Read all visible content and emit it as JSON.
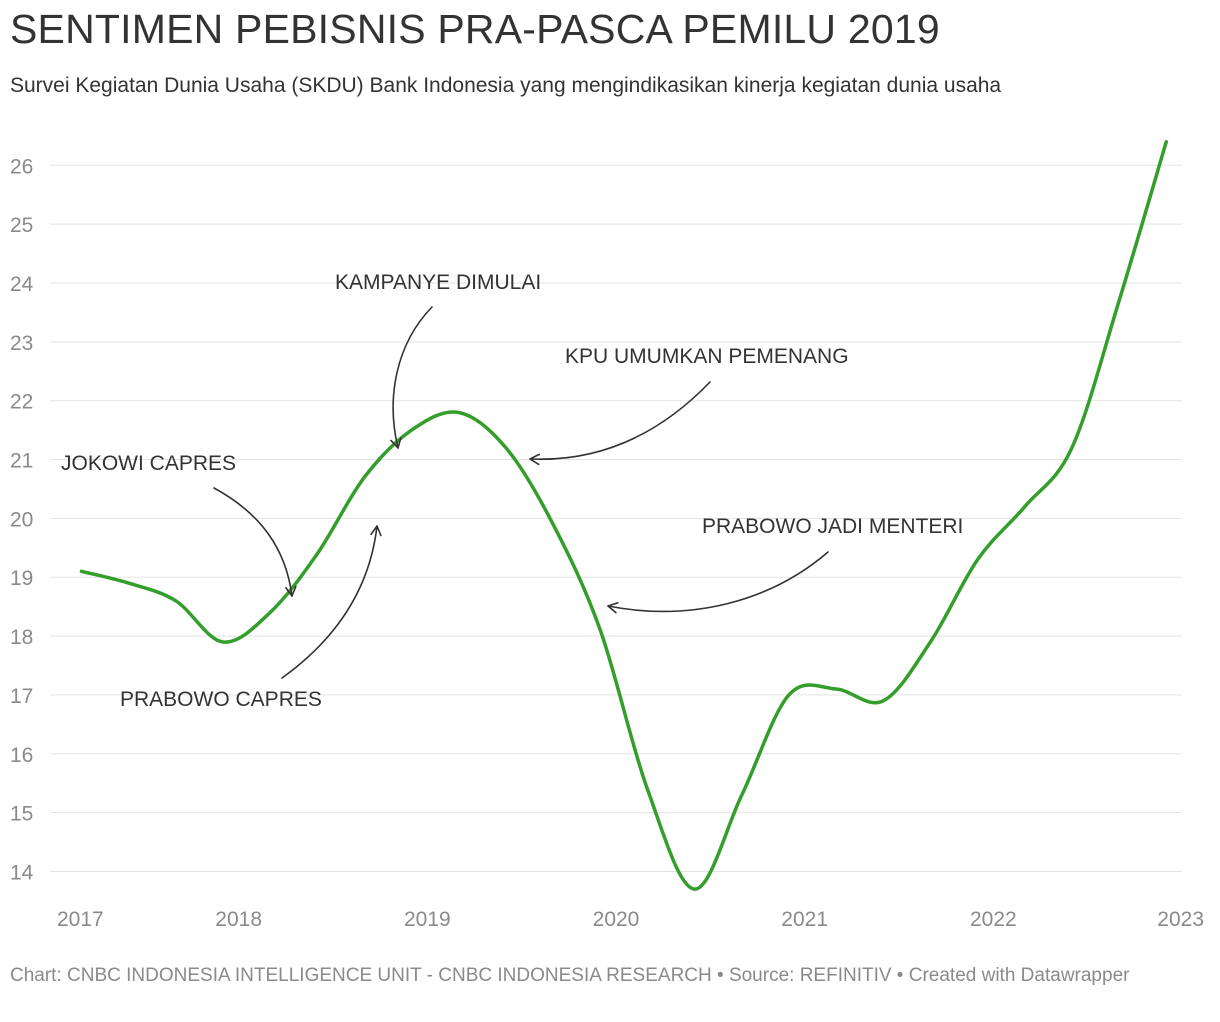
{
  "chart_data": {
    "type": "line",
    "title": "SENTIMEN PEBISNIS PRA-PASCA PEMILU 2019",
    "subtitle": "Survei Kegiatan Dunia Usaha (SKDU) Bank Indonesia yang mengindikasikan kinerja kegiatan dunia usaha",
    "footer": "Chart: CNBC INDONESIA INTELLIGENCE UNIT - CNBC INDONESIA RESEARCH • Source: REFINITIV • Created with Datawrapper",
    "xlim": [
      2017,
      2023
    ],
    "x_ticks": [
      "2017",
      "2018",
      "2019",
      "2020",
      "2021",
      "2022",
      "2023"
    ],
    "ylim": [
      13.6,
      26.6
    ],
    "y_ticks": [
      14,
      15,
      16,
      17,
      18,
      19,
      20,
      21,
      22,
      23,
      24,
      25,
      26
    ],
    "grid": true,
    "line_color": "#339e2b",
    "series": [
      {
        "x": [
          "2017-03",
          "2017-06",
          "2017-09",
          "2017-12",
          "2018-03",
          "2018-06",
          "2018-09",
          "2018-12",
          "2019-03",
          "2019-06",
          "2019-09",
          "2019-12",
          "2020-03",
          "2020-06",
          "2020-09",
          "2020-12",
          "2021-03",
          "2021-06",
          "2021-09",
          "2021-12",
          "2022-03",
          "2022-06",
          "2022-09",
          "2022-12"
        ],
        "values": [
          19.1,
          18.9,
          18.6,
          17.9,
          18.4,
          19.4,
          20.7,
          21.5,
          21.8,
          21.2,
          19.9,
          18.1,
          15.4,
          13.7,
          15.3,
          17.0,
          17.1,
          16.9,
          17.9,
          19.3,
          20.2,
          21.2,
          23.7,
          26.4
        ]
      }
    ],
    "annotations": [
      "JOKOWI CAPRES",
      "PRABOWO CAPRES",
      "KAMPANYE DIMULAI",
      "KPU UMUMKAN PEMENANG",
      "PRABOWO JADI MENTERI"
    ]
  }
}
